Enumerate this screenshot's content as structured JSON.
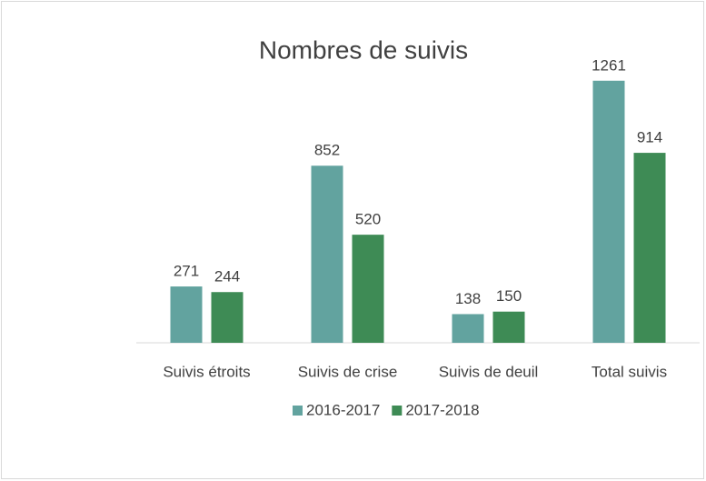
{
  "chart_data": {
    "type": "bar",
    "title": "Nombres de suivis",
    "categories": [
      "Suivis étroits",
      "Suivis de crise",
      "Suivis de deuil",
      "Total suivis"
    ],
    "series": [
      {
        "name": "2016-2017",
        "color": "#62a39f",
        "values": [
          271,
          852,
          138,
          1261
        ]
      },
      {
        "name": "2017-2018",
        "color": "#3e8b55",
        "values": [
          244,
          520,
          150,
          914
        ]
      }
    ],
    "ylim": [
      0,
      1400
    ],
    "legend": "bottom"
  }
}
